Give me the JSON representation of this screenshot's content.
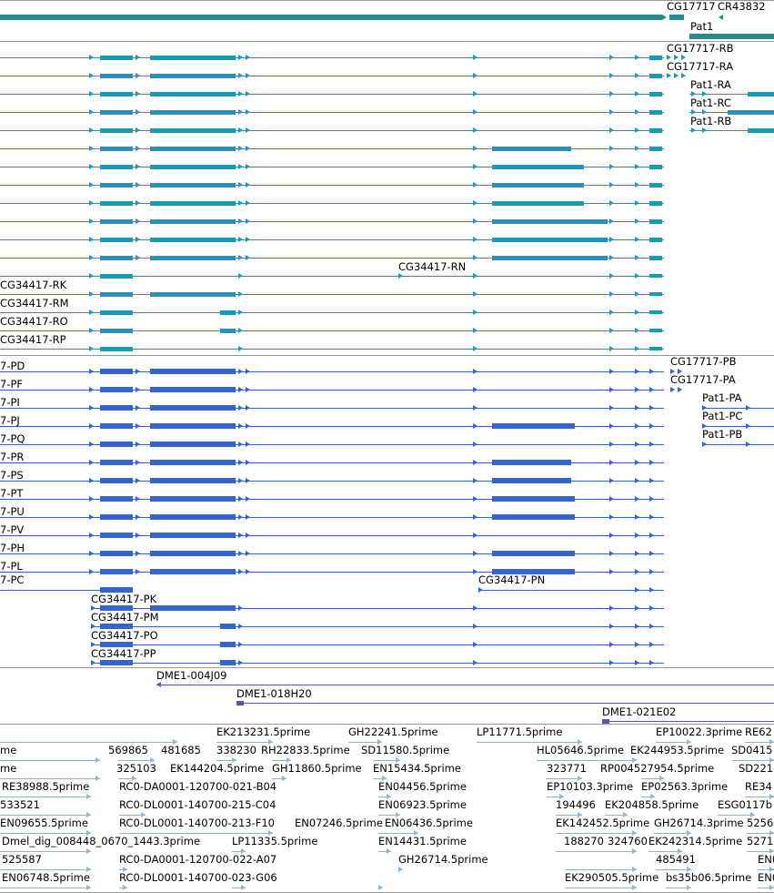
{
  "colors": {
    "gene": "#2a8a8a",
    "transcript": "#119cba",
    "protein": "#3366cc",
    "clone": "#6a4fa8",
    "est": "#8ab8dc",
    "separator": "#9a9a9a"
  },
  "gene_track": {
    "labels": [
      "CG17717",
      "CR43832",
      "Pat1"
    ]
  },
  "transcript_track": {
    "labels": [
      "CG17717-RB",
      "CG17717-RA",
      "Pat1-RA",
      "Pat1-RC",
      "Pat1-RB",
      "CG34417-RN",
      "CG34417-RK",
      "CG34417-RM",
      "CG34417-RO",
      "CG34417-RP"
    ]
  },
  "protein_track": {
    "labels": [
      "7-PD",
      "7-PF",
      "7-PI",
      "7-PJ",
      "7-PQ",
      "7-PR",
      "7-PS",
      "7-PT",
      "7-PU",
      "7-PV",
      "7-PH",
      "7-PL",
      "7-PC",
      "CG17717-PB",
      "CG17717-PA",
      "Pat1-PA",
      "Pat1-PC",
      "Pat1-PB",
      "CG34417-PN",
      "CG34417-PK",
      "CG34417-PM",
      "CG34417-PO",
      "CG34417-PP"
    ]
  },
  "clone_track": {
    "labels": [
      "DME1-004J09",
      "DME1-018H20",
      "DME1-021E02"
    ]
  },
  "est_track": {
    "labels": [
      "EK213231.5prime",
      "GH22241.5prime",
      "LP11771.5prime",
      "EP10022.3prime",
      "RE62",
      "me",
      "569865",
      "481685",
      "338230",
      "RH22833.5prime",
      "SD11580.5prime",
      "HL05646.5prime",
      "EK244953.5prime",
      "SD0415",
      "me",
      "325103",
      "EK144204.5prime",
      "GH11860.5prime",
      "EN15434.5prime",
      "323771",
      "RP004527954.5prime",
      "SD221",
      "RE38988.5prime",
      "RC0-DA0001-120700-021-B04",
      "EN04456.5prime",
      "EP10103.3prime",
      "EP02563.3prime",
      "RE34",
      "533521",
      "RC0-DL0001-140700-215-C04",
      "EN06923.5prime",
      "194496",
      "EK204858.5prime",
      "ESG0117b",
      "EN09655.5prime",
      "RC0-DL0001-140700-213-F10",
      "EN07246.5prime",
      "EN06436.5prime",
      "EK142452.5prime",
      "GH26714.3prime",
      "5256",
      "Dmel_dig_008448_0670_1443.3prime",
      "LP11335.5prime",
      "EN14431.5prime",
      "188270",
      "324760",
      "EK242314.5prime",
      "5271",
      "525587",
      "RC0-DA0001-120700-022-A07",
      "GH26714.5prime",
      "485491",
      "EN0",
      "EN06748.5prime",
      "RC0-DL0001-140700-023-G06",
      "EK290505.5prime",
      "bs35b06.5prime",
      "EN0"
    ]
  }
}
